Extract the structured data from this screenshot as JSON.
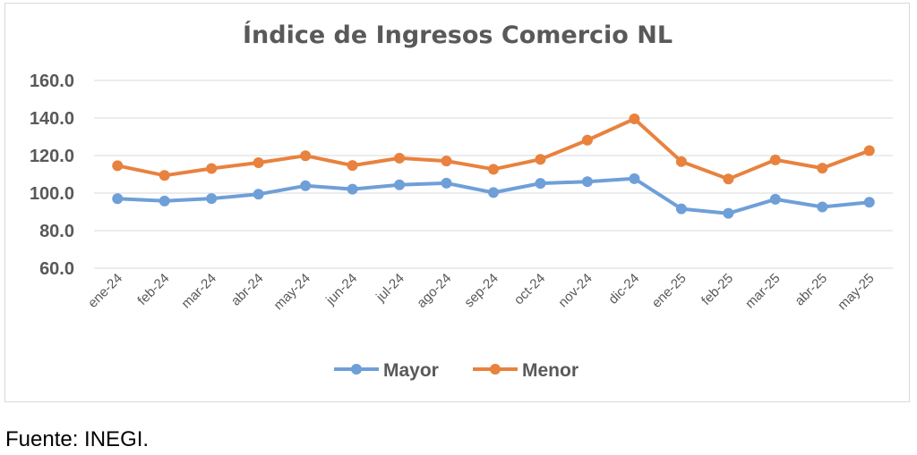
{
  "chart_data": {
    "type": "line",
    "title": "Índice de Ingresos Comercio NL",
    "xlabel": "",
    "ylabel": "",
    "ylim": [
      60,
      160
    ],
    "yticks": [
      "160.0",
      "140.0",
      "120.0",
      "100.0",
      "80.0",
      "60.0"
    ],
    "grid": true,
    "legend_position": "bottom",
    "categories": [
      "ene-24",
      "feb-24",
      "mar-24",
      "abr-24",
      "may-24",
      "jun-24",
      "jul-24",
      "ago-24",
      "sep-24",
      "oct-24",
      "nov-24",
      "dic-24",
      "ene-25",
      "feb-25",
      "mar-25",
      "abr-25",
      "may-25"
    ],
    "series": [
      {
        "name": "Mayor",
        "color": "#6f9fd8",
        "values": [
          97.0,
          95.8,
          97.1,
          99.4,
          103.9,
          102.1,
          104.4,
          105.3,
          100.3,
          105.2,
          106.1,
          107.7,
          91.6,
          89.2,
          96.7,
          92.6,
          95.1
        ]
      },
      {
        "name": "Menor",
        "color": "#e8823e",
        "values": [
          114.6,
          109.4,
          113.1,
          116.2,
          119.9,
          114.7,
          118.6,
          117.1,
          112.7,
          118.0,
          128.2,
          139.5,
          116.8,
          107.5,
          117.7,
          113.3,
          122.6
        ]
      }
    ]
  },
  "source_note": "Fuente: INEGI."
}
